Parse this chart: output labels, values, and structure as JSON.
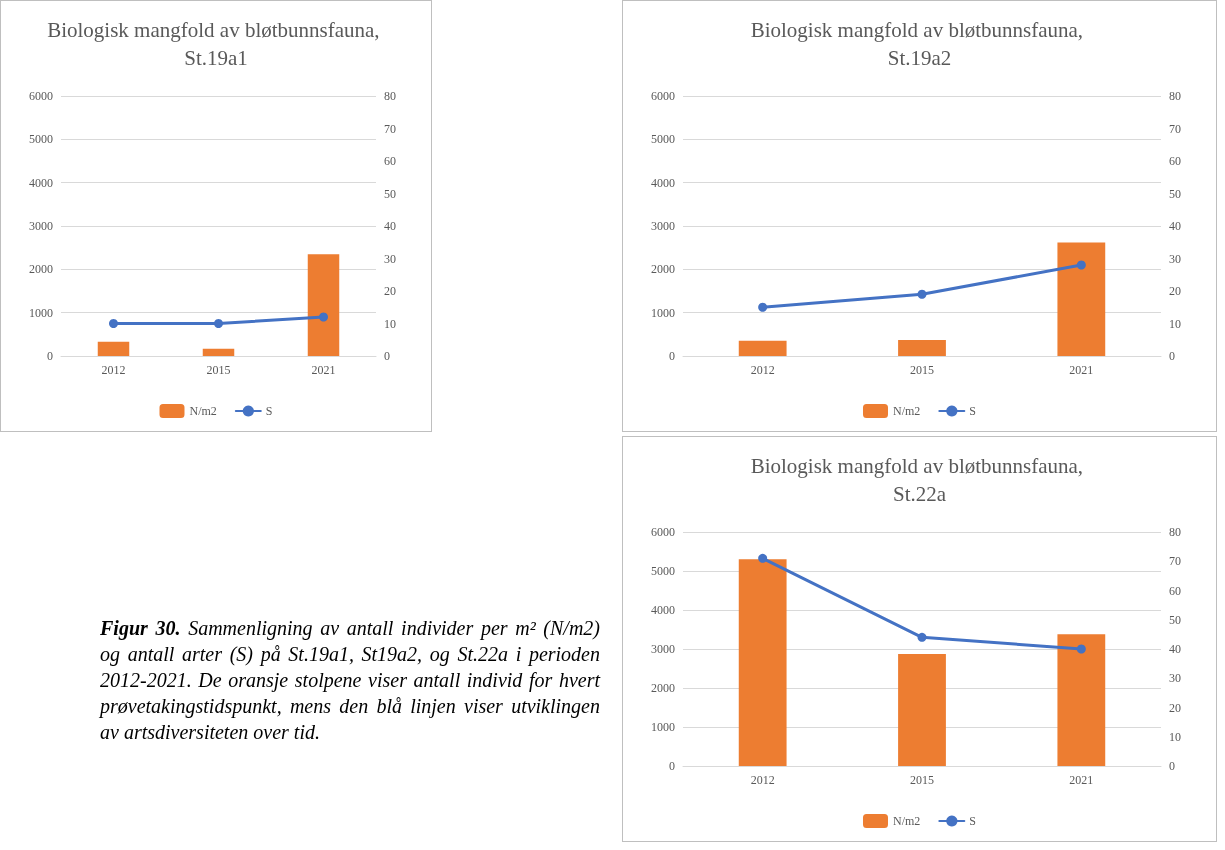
{
  "chart_data": [
    {
      "type": "bar",
      "title": "Biologisk mangfold av bløtbunnsfauna, St.19a1",
      "categories": [
        "2012",
        "2015",
        "2021"
      ],
      "ylim": [
        0,
        6000
      ],
      "yticks": [
        0,
        1000,
        2000,
        3000,
        4000,
        5000,
        6000
      ],
      "y2lim": [
        0,
        80
      ],
      "y2ticks": [
        0,
        10,
        20,
        30,
        40,
        50,
        60,
        70,
        80
      ],
      "grid": "y",
      "legend": "bottom",
      "marker": "circle",
      "series": [
        {
          "name": "N/m2",
          "type": "bar",
          "color": "#ed7d31",
          "values": [
            330,
            170,
            2350
          ]
        },
        {
          "name": "S",
          "type": "line",
          "axis": "y2",
          "color": "#4472c4",
          "values": [
            10,
            10,
            12
          ]
        }
      ]
    },
    {
      "type": "bar",
      "title": "Biologisk mangfold av bløtbunnsfauna, St.19a2",
      "categories": [
        "2012",
        "2015",
        "2021"
      ],
      "ylim": [
        0,
        6000
      ],
      "yticks": [
        0,
        1000,
        2000,
        3000,
        4000,
        5000,
        6000
      ],
      "y2lim": [
        0,
        80
      ],
      "y2ticks": [
        0,
        10,
        20,
        30,
        40,
        50,
        60,
        70,
        80
      ],
      "grid": "y",
      "legend": "bottom",
      "marker": "circle",
      "series": [
        {
          "name": "N/m2",
          "type": "bar",
          "color": "#ed7d31",
          "values": [
            350,
            370,
            2620
          ]
        },
        {
          "name": "S",
          "type": "line",
          "axis": "y2",
          "color": "#4472c4",
          "values": [
            15,
            19,
            28
          ]
        }
      ]
    },
    {
      "type": "bar",
      "title": "Biologisk mangfold av bløtbunnsfauna, St.22a",
      "categories": [
        "2012",
        "2015",
        "2021"
      ],
      "ylim": [
        0,
        6000
      ],
      "yticks": [
        0,
        1000,
        2000,
        3000,
        4000,
        5000,
        6000
      ],
      "y2lim": [
        0,
        80
      ],
      "y2ticks": [
        0,
        10,
        20,
        30,
        40,
        50,
        60,
        70,
        80
      ],
      "grid": "y",
      "legend": "bottom",
      "marker": "circle",
      "series": [
        {
          "name": "N/m2",
          "type": "bar",
          "color": "#ed7d31",
          "values": [
            5300,
            2870,
            3380
          ]
        },
        {
          "name": "S",
          "type": "line",
          "axis": "y2",
          "color": "#4472c4",
          "values": [
            71,
            44,
            40
          ]
        }
      ]
    },
    {
      "type": "other",
      "title": "Figur 30.",
      "annotations": [
        "Sammenligning av antall individer per m² (N/m2) og antall arter (S) på St.19a1, St19a2, og St.22a i perioden 2012-2021. De oransje stolpene viser antall individ for hvert prøvetakingstidspunkt, mens den blå linjen viser utviklingen av artsdiversiteten over tid."
      ]
    }
  ]
}
